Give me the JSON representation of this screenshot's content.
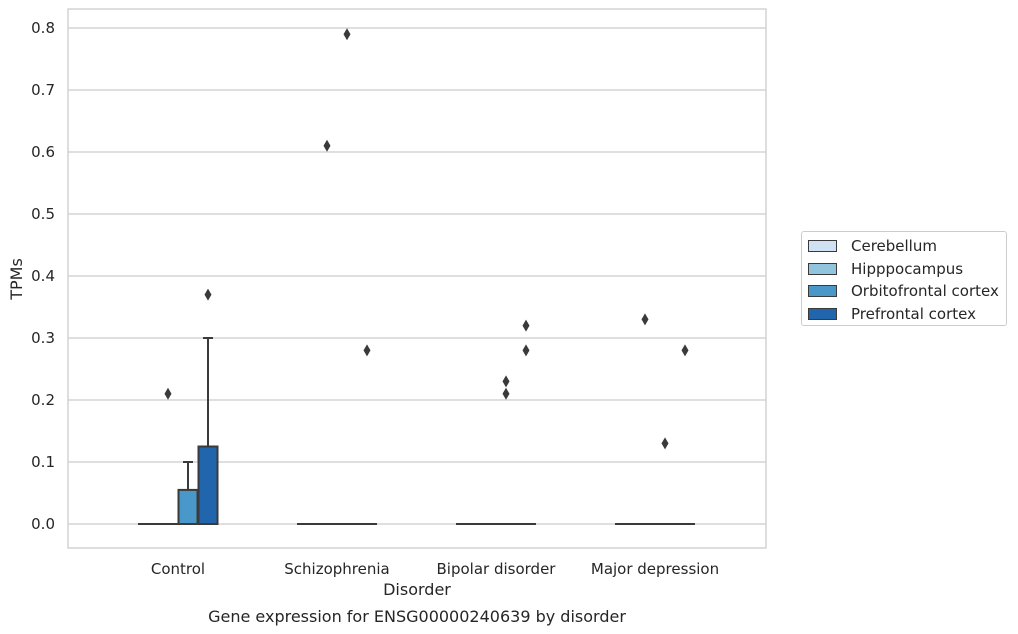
{
  "chart_data": {
    "type": "box",
    "title": "Gene expression for ENSG00000240639 by disorder",
    "xlabel": "Disorder",
    "ylabel": "TPMs",
    "ylim": [
      -0.04,
      0.83
    ],
    "yticks": [
      0.0,
      0.1,
      0.2,
      0.3,
      0.4,
      0.5,
      0.6,
      0.7,
      0.8
    ],
    "ytick_labels": [
      "0.0",
      "0.1",
      "0.2",
      "0.3",
      "0.4",
      "0.5",
      "0.6",
      "0.7",
      "0.8"
    ],
    "categories": [
      "Control",
      "Schizophrenia",
      "Bipolar disorder",
      "Major depression"
    ],
    "grid": "horizontal",
    "legend_position": "right",
    "series": [
      {
        "name": "Cerebellum",
        "color": "#cfe1f2",
        "boxes": [
          {
            "q1": 0,
            "median": 0,
            "q3": 0,
            "whisker_low": 0,
            "whisker_high": 0,
            "outliers": []
          },
          {
            "q1": 0,
            "median": 0,
            "q3": 0,
            "whisker_low": 0,
            "whisker_high": 0,
            "outliers": []
          },
          {
            "q1": 0,
            "median": 0,
            "q3": 0,
            "whisker_low": 0,
            "whisker_high": 0,
            "outliers": []
          },
          {
            "q1": 0,
            "median": 0,
            "q3": 0,
            "whisker_low": 0,
            "whisker_high": 0,
            "outliers": []
          }
        ]
      },
      {
        "name": "Hipppocampus",
        "color": "#93c4de",
        "boxes": [
          {
            "q1": 0,
            "median": 0,
            "q3": 0,
            "whisker_low": 0,
            "whisker_high": 0,
            "outliers": [
              0.21
            ]
          },
          {
            "q1": 0,
            "median": 0,
            "q3": 0,
            "whisker_low": 0,
            "whisker_high": 0,
            "outliers": [
              0.61
            ]
          },
          {
            "q1": 0,
            "median": 0,
            "q3": 0,
            "whisker_low": 0,
            "whisker_high": 0,
            "outliers": []
          },
          {
            "q1": 0,
            "median": 0,
            "q3": 0,
            "whisker_low": 0,
            "whisker_high": 0,
            "outliers": [
              0.33
            ]
          }
        ]
      },
      {
        "name": "Orbitofrontal cortex",
        "color": "#4a98c9",
        "boxes": [
          {
            "q1": 0,
            "median": 0,
            "q3": 0.055,
            "whisker_low": 0,
            "whisker_high": 0.1,
            "outliers": []
          },
          {
            "q1": 0,
            "median": 0,
            "q3": 0,
            "whisker_low": 0,
            "whisker_high": 0,
            "outliers": [
              0.79
            ]
          },
          {
            "q1": 0,
            "median": 0,
            "q3": 0,
            "whisker_low": 0,
            "whisker_high": 0,
            "outliers": [
              0.21,
              0.23
            ]
          },
          {
            "q1": 0,
            "median": 0,
            "q3": 0,
            "whisker_low": 0,
            "whisker_high": 0,
            "outliers": [
              0.13
            ]
          }
        ]
      },
      {
        "name": "Prefrontal cortex",
        "color": "#2166ac",
        "boxes": [
          {
            "q1": 0,
            "median": 0,
            "q3": 0.125,
            "whisker_low": 0,
            "whisker_high": 0.3,
            "outliers": [
              0.37
            ]
          },
          {
            "q1": 0,
            "median": 0,
            "q3": 0,
            "whisker_low": 0,
            "whisker_high": 0,
            "outliers": [
              0.28
            ]
          },
          {
            "q1": 0,
            "median": 0,
            "q3": 0,
            "whisker_low": 0,
            "whisker_high": 0,
            "outliers": [
              0.28,
              0.32
            ]
          },
          {
            "q1": 0,
            "median": 0,
            "q3": 0,
            "whisker_low": 0,
            "whisker_high": 0,
            "outliers": [
              0.28
            ]
          }
        ]
      }
    ]
  }
}
